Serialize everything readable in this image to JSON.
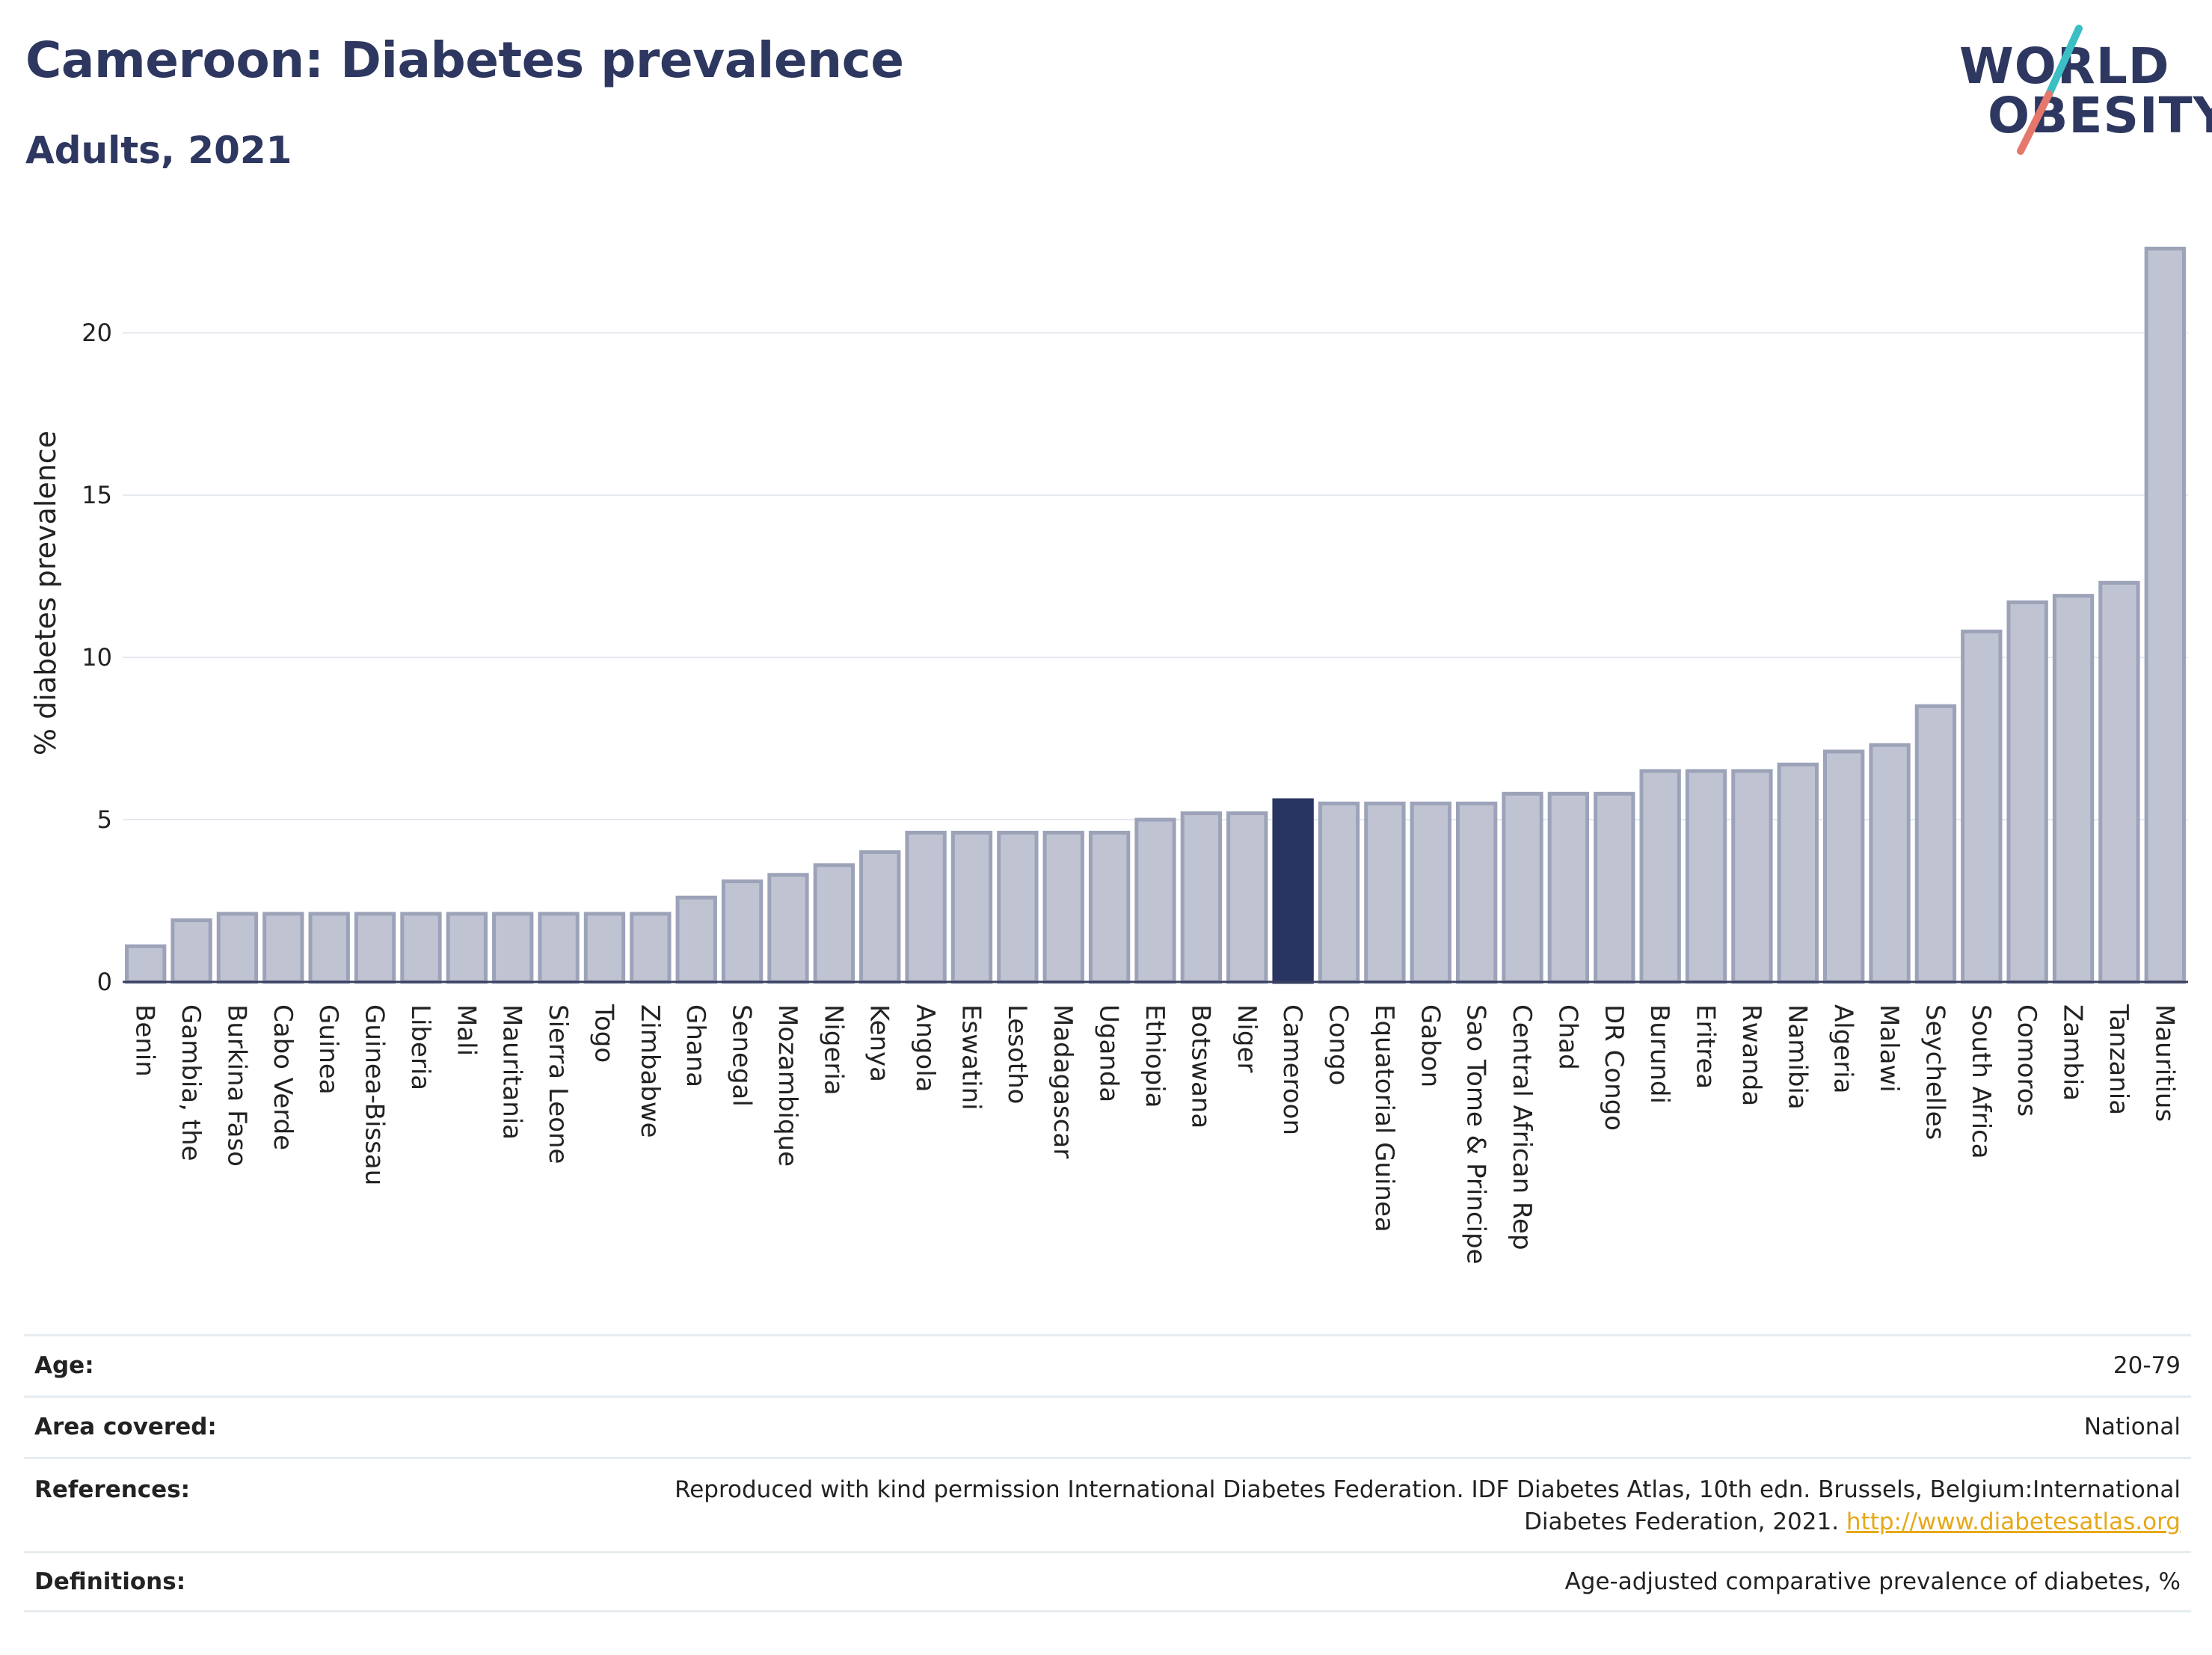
{
  "header": {
    "title": "Cameroon: Diabetes prevalence",
    "subtitle": "Adults, 2021"
  },
  "logo": {
    "line1": "WORLD",
    "line2": "OBESITY",
    "colors": {
      "text": "#2d3760",
      "slash_top": "#3bbfc4",
      "slash_bottom": "#e5786b"
    }
  },
  "colors": {
    "bar": "#c0c4d2",
    "bar_outline": "#9ca3b9",
    "highlight": "#283562",
    "gridline": "#e6e9ef",
    "axis_text": "#222222"
  },
  "chart_data": {
    "type": "bar",
    "ylabel": "% diabetes prevalence",
    "xlabel": "",
    "ylim": [
      0,
      23
    ],
    "yticks": [
      0,
      5,
      10,
      15,
      20
    ],
    "grid": true,
    "highlight": "Cameroon",
    "categories": [
      "Benin",
      "Gambia, the",
      "Burkina Faso",
      "Cabo Verde",
      "Guinea",
      "Guinea-Bissau",
      "Liberia",
      "Mali",
      "Mauritania",
      "Sierra Leone",
      "Togo",
      "Zimbabwe",
      "Ghana",
      "Senegal",
      "Mozambique",
      "Nigeria",
      "Kenya",
      "Angola",
      "Eswatini",
      "Lesotho",
      "Madagascar",
      "Uganda",
      "Ethiopia",
      "Botswana",
      "Niger",
      "Cameroon",
      "Congo",
      "Equatorial Guinea",
      "Gabon",
      "Sao Tome & Principe",
      "Central African Rep",
      "Chad",
      "DR Congo",
      "Burundi",
      "Eritrea",
      "Rwanda",
      "Namibia",
      "Algeria",
      "Malawi",
      "Seychelles",
      "South Africa",
      "Comoros",
      "Zambia",
      "Tanzania",
      "Mauritius"
    ],
    "values": [
      1.1,
      1.9,
      2.1,
      2.1,
      2.1,
      2.1,
      2.1,
      2.1,
      2.1,
      2.1,
      2.1,
      2.1,
      2.6,
      3.1,
      3.3,
      3.6,
      4.0,
      4.6,
      4.6,
      4.6,
      4.6,
      4.6,
      5.0,
      5.2,
      5.2,
      5.6,
      5.5,
      5.5,
      5.5,
      5.5,
      5.8,
      5.8,
      5.8,
      6.5,
      6.5,
      6.5,
      6.7,
      7.1,
      7.3,
      8.5,
      10.8,
      11.7,
      11.9,
      12.3,
      22.6
    ]
  },
  "footer": {
    "age_label": "Age:",
    "age_value": "20-79",
    "area_label": "Area covered:",
    "area_value": "National",
    "references_label": "References:",
    "references_text1": "Reproduced with kind permission International Diabetes Federation.  IDF Diabetes Atlas, 10th edn. Brussels, Belgium:International",
    "references_text2": "Diabetes Federation, 2021.",
    "references_link": "http://www.diabetesatlas.org",
    "definitions_label": "Definitions:",
    "definitions_value": "Age-adjusted comparative prevalence of diabetes, %"
  }
}
